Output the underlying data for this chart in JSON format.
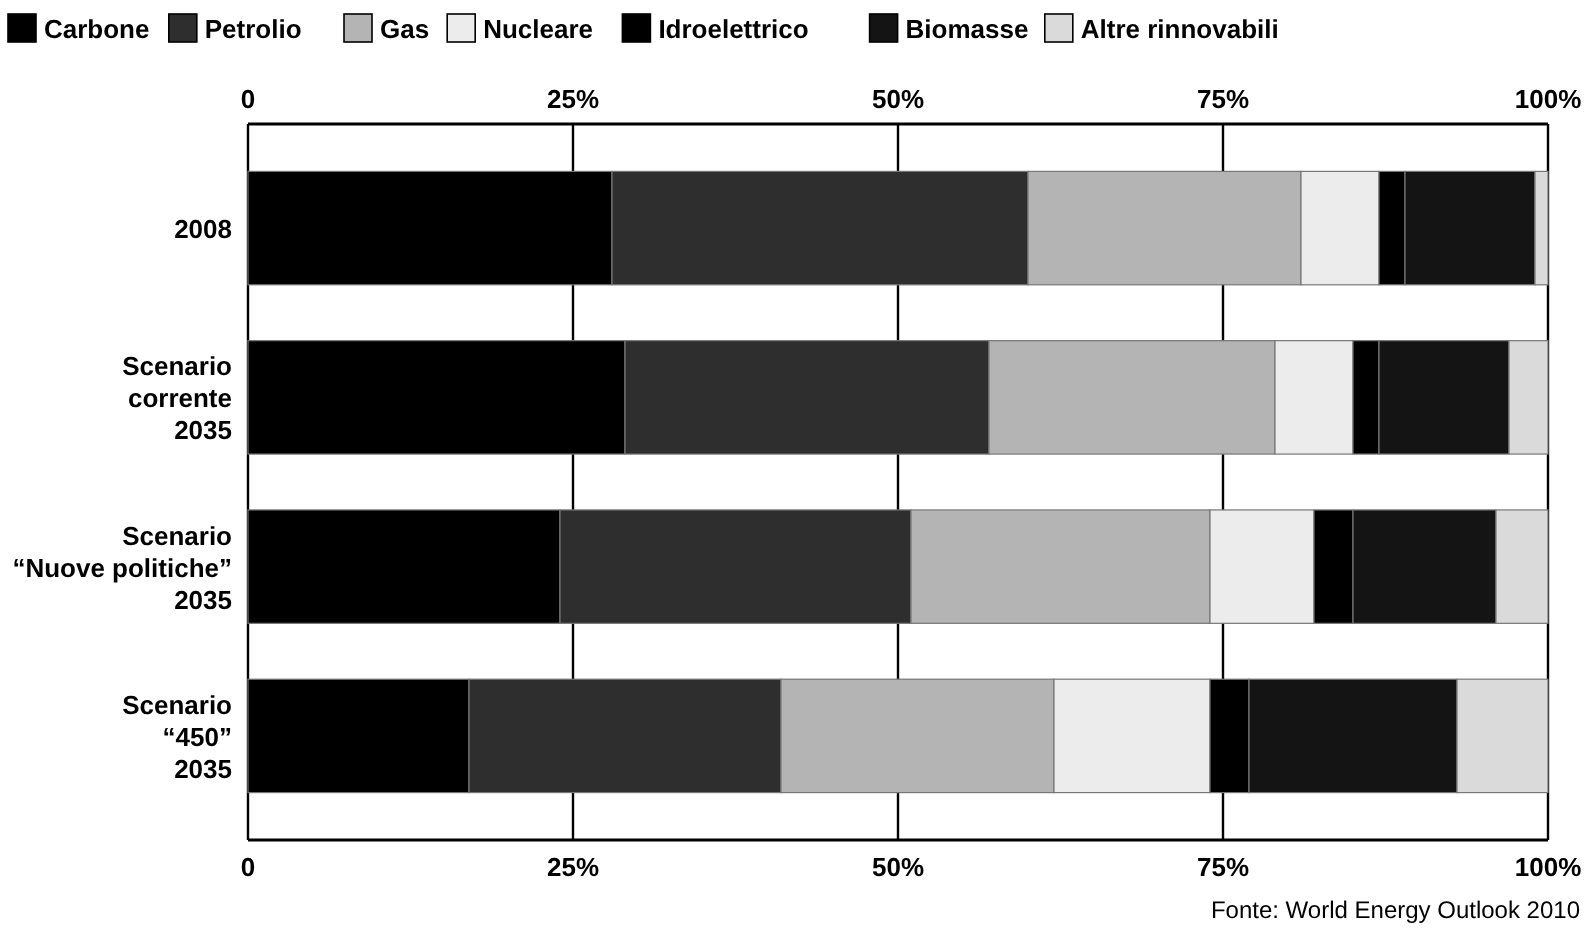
{
  "chart_data": {
    "type": "bar",
    "orientation": "horizontal",
    "stacked": true,
    "categories": [
      "2008",
      "Scenario\ncorrente\n2035",
      "Scenario\n“Nuove politiche”\n2035",
      "Scenario\n“450”\n2035"
    ],
    "series": [
      {
        "name": "Carbone",
        "color": "#000000",
        "values": [
          28,
          29,
          24,
          17
        ]
      },
      {
        "name": "Petrolio",
        "color": "#2e2e2e",
        "values": [
          32,
          28,
          27,
          24
        ]
      },
      {
        "name": "Gas",
        "color": "#b4b4b4",
        "values": [
          21,
          22,
          23,
          21
        ]
      },
      {
        "name": "Nucleare",
        "color": "#ececec",
        "values": [
          6,
          6,
          8,
          12
        ]
      },
      {
        "name": "Idroelettrico",
        "color": "#000000",
        "values": [
          2,
          2,
          3,
          3
        ]
      },
      {
        "name": "Biomasse",
        "color": "#141414",
        "values": [
          10,
          10,
          11,
          16
        ]
      },
      {
        "name": "Altre rinnovabili",
        "color": "#dadada",
        "values": [
          1,
          3,
          4,
          7
        ]
      }
    ],
    "xlim": [
      0,
      100
    ],
    "xticks": [
      {
        "value": 0,
        "label": "0"
      },
      {
        "value": 25,
        "label": "25%"
      },
      {
        "value": 50,
        "label": "50%"
      },
      {
        "value": 75,
        "label": "75%"
      },
      {
        "value": 100,
        "label": "100%"
      }
    ],
    "x2lim": [
      0,
      100
    ],
    "x2ticks": [
      {
        "value": 0,
        "label": "0"
      },
      {
        "value": 25,
        "label": "25%"
      },
      {
        "value": 50,
        "label": "50%"
      },
      {
        "value": 75,
        "label": "75%"
      },
      {
        "value": 100,
        "label": "100%"
      }
    ],
    "grid": "x",
    "legend": "top",
    "annotations": [
      "Fonte: World Energy Outlook 2010"
    ]
  }
}
